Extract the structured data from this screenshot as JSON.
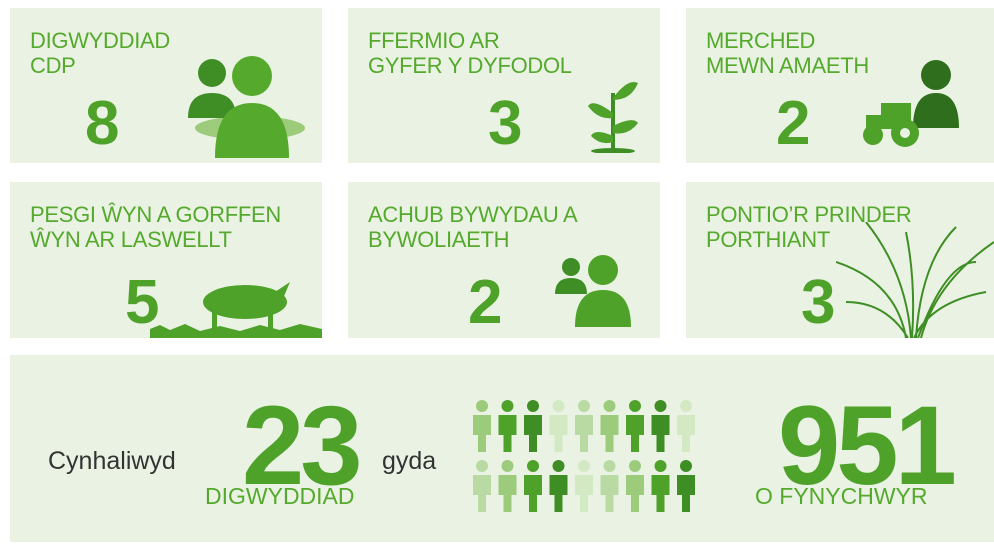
{
  "tiles": [
    {
      "title": [
        "DIGWYDDIAD",
        "CDP"
      ],
      "number": 8
    },
    {
      "title": [
        "FFERMIO AR",
        "GYFER Y DYFODOL"
      ],
      "number": 3
    },
    {
      "title": [
        "MERCHED",
        "MEWN AMAETH"
      ],
      "number": 2
    },
    {
      "title": [
        "PESGI ŴYN A GORFFEN",
        "ŴYN AR LASWELLT"
      ],
      "number": 5
    },
    {
      "title": [
        "ACHUB BYWYDAU A",
        "BYWOLIAETH"
      ],
      "number": 2
    },
    {
      "title": [
        "PONTIO’R PRINDER",
        "PORTHIANT"
      ],
      "number": 3
    }
  ],
  "summary": {
    "lead": "Cynhaliwyd",
    "events": 23,
    "events_label": "DIGWYDDIAD",
    "joiner": "gyda",
    "attendees": 951,
    "attendees_label": "O FYNYCHWYR"
  }
}
